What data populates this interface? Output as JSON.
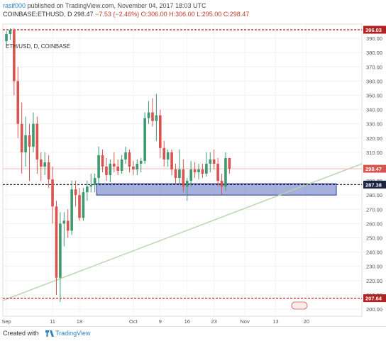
{
  "header": {
    "user": "rasif000",
    "published_text": " published on TradingView.com, November 04, 2017 18:03 UTC",
    "symbol": "COINBASE:ETHUSD, D",
    "close_value": "298.47",
    "change_text": "−7.53 (−2.46%)",
    "ohlc_text": "O:306.00 H:306.00 L:295.00 C:298.47"
  },
  "chart_title": "ETH/USD, D, COINBASE",
  "footer": {
    "created_with": "Created with",
    "brand": "TradingView"
  },
  "colors": {
    "up": "#3d9970",
    "down": "#d9534f",
    "support_zone": "#5c6fc2",
    "trendline": "#b8d4a8",
    "dashed_level": "#b22222"
  },
  "chart_data": {
    "type": "candlestick",
    "ylim": [
      195,
      400
    ],
    "y_ticks": [
      200,
      210,
      220,
      230,
      240,
      250,
      260,
      270,
      280,
      290,
      300,
      310,
      320,
      330,
      340,
      350,
      360,
      370,
      380,
      390
    ],
    "x_ticks": [
      "Sep",
      "11",
      "18",
      "Oct",
      "9",
      "16",
      "23",
      "Nov",
      "13",
      "20"
    ],
    "price_labels": [
      {
        "value": 396.03,
        "label": "396.03",
        "color": "#b22222"
      },
      {
        "value": 298.47,
        "label": "298.47",
        "color": "#d9534f"
      },
      {
        "value": 287.38,
        "label": "287.38",
        "color": "#1a2340"
      },
      {
        "value": 207.64,
        "label": "207.64",
        "color": "#b22222"
      }
    ],
    "horizontal_levels": [
      396.03,
      287.38,
      207.64
    ],
    "support_zone": {
      "from": 280,
      "to": 288
    },
    "trendline": {
      "from": [
        0,
        206
      ],
      "to": [
        75,
        302
      ]
    },
    "candles": [
      {
        "o": 388,
        "h": 395,
        "l": 383,
        "c": 393
      },
      {
        "o": 393,
        "h": 397,
        "l": 389,
        "c": 396
      },
      {
        "o": 396,
        "h": 397,
        "l": 350,
        "c": 360
      },
      {
        "o": 360,
        "h": 370,
        "l": 320,
        "c": 330
      },
      {
        "o": 330,
        "h": 345,
        "l": 295,
        "c": 310
      },
      {
        "o": 310,
        "h": 335,
        "l": 300,
        "c": 322
      },
      {
        "o": 322,
        "h": 330,
        "l": 290,
        "c": 314
      },
      {
        "o": 314,
        "h": 338,
        "l": 310,
        "c": 330
      },
      {
        "o": 330,
        "h": 335,
        "l": 295,
        "c": 305
      },
      {
        "o": 305,
        "h": 310,
        "l": 290,
        "c": 300
      },
      {
        "o": 300,
        "h": 310,
        "l": 294,
        "c": 303
      },
      {
        "o": 303,
        "h": 308,
        "l": 285,
        "c": 291
      },
      {
        "o": 291,
        "h": 300,
        "l": 260,
        "c": 272
      },
      {
        "o": 272,
        "h": 276,
        "l": 210,
        "c": 222
      },
      {
        "o": 222,
        "h": 268,
        "l": 205,
        "c": 260
      },
      {
        "o": 260,
        "h": 268,
        "l": 244,
        "c": 262
      },
      {
        "o": 262,
        "h": 270,
        "l": 250,
        "c": 255
      },
      {
        "o": 255,
        "h": 290,
        "l": 252,
        "c": 284
      },
      {
        "o": 284,
        "h": 290,
        "l": 272,
        "c": 280
      },
      {
        "o": 280,
        "h": 285,
        "l": 262,
        "c": 264
      },
      {
        "o": 264,
        "h": 285,
        "l": 262,
        "c": 282
      },
      {
        "o": 282,
        "h": 290,
        "l": 276,
        "c": 286
      },
      {
        "o": 286,
        "h": 295,
        "l": 282,
        "c": 287
      },
      {
        "o": 287,
        "h": 295,
        "l": 282,
        "c": 292
      },
      {
        "o": 292,
        "h": 314,
        "l": 288,
        "c": 308
      },
      {
        "o": 308,
        "h": 312,
        "l": 296,
        "c": 300
      },
      {
        "o": 300,
        "h": 306,
        "l": 290,
        "c": 294
      },
      {
        "o": 294,
        "h": 305,
        "l": 289,
        "c": 302
      },
      {
        "o": 302,
        "h": 310,
        "l": 296,
        "c": 300
      },
      {
        "o": 300,
        "h": 305,
        "l": 294,
        "c": 297
      },
      {
        "o": 297,
        "h": 308,
        "l": 295,
        "c": 305
      },
      {
        "o": 305,
        "h": 314,
        "l": 302,
        "c": 310
      },
      {
        "o": 310,
        "h": 312,
        "l": 296,
        "c": 300
      },
      {
        "o": 300,
        "h": 304,
        "l": 294,
        "c": 298
      },
      {
        "o": 298,
        "h": 305,
        "l": 294,
        "c": 302
      },
      {
        "o": 302,
        "h": 306,
        "l": 296,
        "c": 304
      },
      {
        "o": 304,
        "h": 338,
        "l": 302,
        "c": 334
      },
      {
        "o": 334,
        "h": 346,
        "l": 330,
        "c": 338
      },
      {
        "o": 338,
        "h": 348,
        "l": 328,
        "c": 332
      },
      {
        "o": 332,
        "h": 351,
        "l": 318,
        "c": 336
      },
      {
        "o": 336,
        "h": 340,
        "l": 306,
        "c": 313
      },
      {
        "o": 313,
        "h": 318,
        "l": 300,
        "c": 305
      },
      {
        "o": 305,
        "h": 312,
        "l": 300,
        "c": 310
      },
      {
        "o": 310,
        "h": 312,
        "l": 294,
        "c": 298
      },
      {
        "o": 298,
        "h": 302,
        "l": 288,
        "c": 292
      },
      {
        "o": 292,
        "h": 312,
        "l": 288,
        "c": 298
      },
      {
        "o": 298,
        "h": 305,
        "l": 282,
        "c": 286
      },
      {
        "o": 286,
        "h": 292,
        "l": 276,
        "c": 290
      },
      {
        "o": 290,
        "h": 304,
        "l": 286,
        "c": 298
      },
      {
        "o": 298,
        "h": 303,
        "l": 292,
        "c": 296
      },
      {
        "o": 296,
        "h": 302,
        "l": 291,
        "c": 298
      },
      {
        "o": 298,
        "h": 302,
        "l": 292,
        "c": 295
      },
      {
        "o": 295,
        "h": 310,
        "l": 293,
        "c": 302
      },
      {
        "o": 302,
        "h": 310,
        "l": 296,
        "c": 305
      },
      {
        "o": 305,
        "h": 312,
        "l": 298,
        "c": 302
      },
      {
        "o": 302,
        "h": 306,
        "l": 286,
        "c": 290
      },
      {
        "o": 290,
        "h": 295,
        "l": 280,
        "c": 286
      },
      {
        "o": 286,
        "h": 310,
        "l": 283,
        "c": 306
      },
      {
        "o": 306,
        "h": 306,
        "l": 295,
        "c": 298.47
      }
    ]
  }
}
